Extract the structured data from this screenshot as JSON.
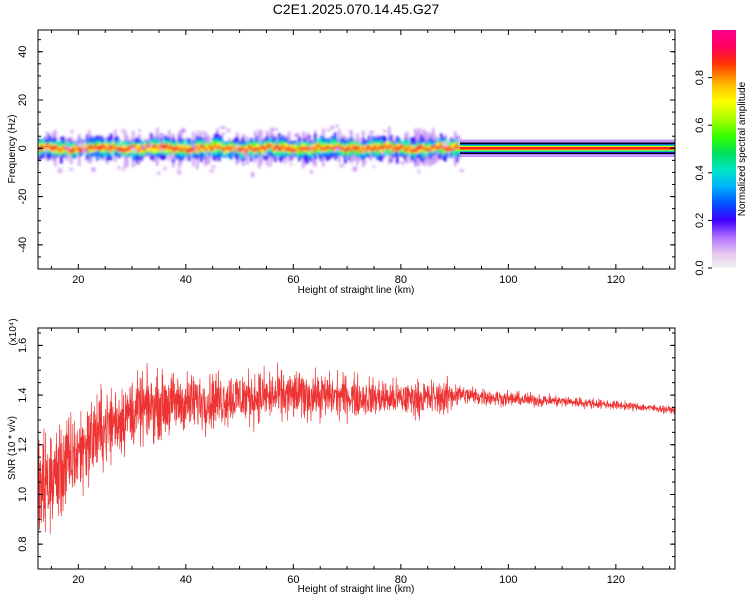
{
  "title": "C2E1.2025.070.14.45.G27",
  "chart_data": [
    {
      "type": "heatmap",
      "xlabel": "Height of straight line (km)",
      "ylabel": "Frequency (Hz)",
      "xlim": [
        12.5,
        131
      ],
      "ylim": [
        -50,
        49
      ],
      "xticks": [
        "20",
        "40",
        "60",
        "80",
        "100",
        "120"
      ],
      "yticks": [
        "-40",
        "-20",
        "0",
        "20",
        "40"
      ],
      "colorbar": {
        "label": "Normalized spectral amplitude",
        "range": [
          0,
          1
        ],
        "ticks": [
          "0.0",
          "0.2",
          "0.4",
          "0.6",
          "0.8"
        ]
      },
      "signal": [
        {
          "x_range": [
            12.5,
            91
          ],
          "center_hz": 0,
          "spread_hz": [
            -10,
            10
          ],
          "character": "scattered blobs"
        },
        {
          "x_range": [
            91,
            131
          ],
          "center_hz": 0,
          "spread_hz": [
            -2,
            2
          ],
          "character": "narrow steady tone"
        }
      ]
    },
    {
      "type": "line",
      "xlabel": "Height of straight line (km)",
      "ylabel": "SNR (10 * v/v)",
      "y_multiplier": "(x10⁴)",
      "xlim": [
        12.5,
        131
      ],
      "ylim": [
        0.7,
        1.67
      ],
      "xticks": [
        "20",
        "40",
        "60",
        "80",
        "100",
        "120"
      ],
      "yticks": [
        "0.8",
        "1.0",
        "1.2",
        "1.4",
        "1.6"
      ],
      "series_color": "#ee3333",
      "trend": {
        "x": [
          12.5,
          15,
          18,
          20,
          22,
          25,
          28,
          30,
          35,
          40,
          50,
          60,
          70,
          80,
          88,
          90,
          92,
          100,
          110,
          120,
          131
        ],
        "y": [
          1.0,
          1.06,
          1.12,
          1.17,
          1.22,
          1.27,
          1.31,
          1.33,
          1.36,
          1.37,
          1.39,
          1.4,
          1.395,
          1.385,
          1.39,
          1.405,
          1.4,
          1.385,
          1.375,
          1.36,
          1.34
        ]
      },
      "noise_amplitude": {
        "x": [
          12.5,
          20,
          30,
          40,
          60,
          80,
          89,
          91,
          100,
          120,
          131
        ],
        "y": [
          0.2,
          0.15,
          0.12,
          0.1,
          0.085,
          0.06,
          0.06,
          0.035,
          0.025,
          0.015,
          0.012
        ]
      }
    }
  ]
}
